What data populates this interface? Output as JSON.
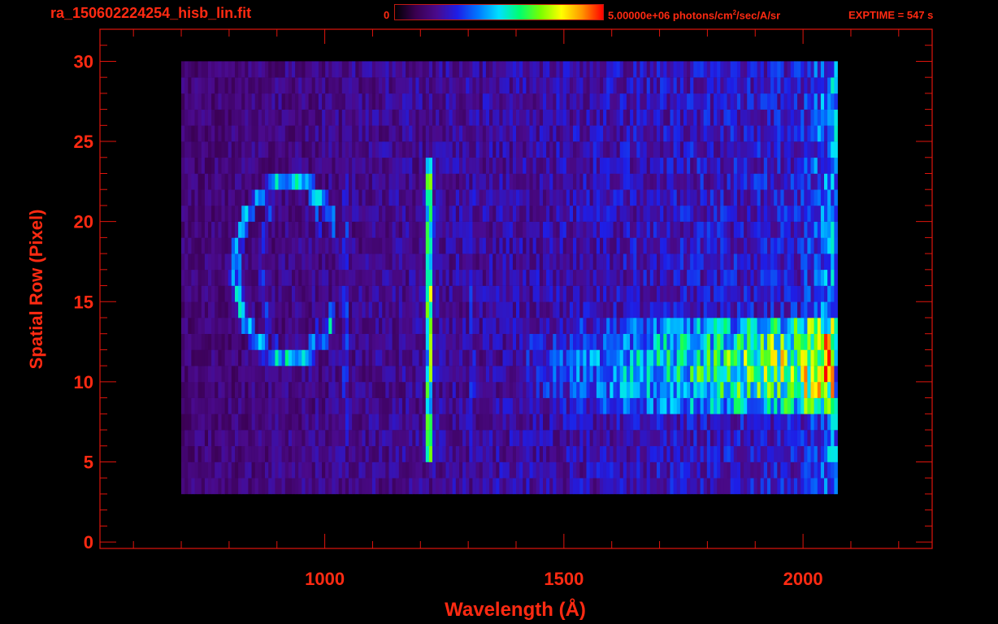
{
  "header": {
    "filename": "ra_150602224254_hisb_lin.fit",
    "colorbar_min": "0",
    "colorbar_max_prefix": "5.00000e+06 photons/cm",
    "colorbar_max_sup": "2",
    "colorbar_max_suffix": "/sec/A/sr",
    "exptime": "EXPTIME = 547 s"
  },
  "colors": {
    "axis": "#e0140c",
    "text": "#ff2a12",
    "background": "#000000",
    "colormap": [
      "#000000",
      "#3a0050",
      "#4a0a8c",
      "#1e1ee6",
      "#0078ff",
      "#00e0ff",
      "#00ff6e",
      "#7aff00",
      "#ffff00",
      "#ff9400",
      "#ff0000"
    ]
  },
  "chart_data": {
    "type": "heatmap",
    "title": "",
    "xlabel": "Wavelength (Å)",
    "ylabel": "Spatial Row (Pixel)",
    "xlim": [
      530,
      2270
    ],
    "ylim": [
      -0.4,
      32
    ],
    "x_ticks": [
      1000,
      1500,
      2000
    ],
    "y_ticks": [
      0,
      5,
      10,
      15,
      20,
      25,
      30
    ],
    "colorbar": {
      "min": 0,
      "max": 5000000,
      "units": "photons/cm^2/sec/A/sr"
    },
    "exposure_time_s": 547,
    "data_extent": {
      "x": [
        700,
        2070
      ],
      "rows": [
        3,
        30
      ]
    },
    "features": [
      {
        "label": "arc",
        "center_x": 920,
        "center_row": 17,
        "radius_x": 110,
        "radius_row": 5.6,
        "level": 0.45
      },
      {
        "label": "inner arc",
        "center_x": 930,
        "center_row": 17,
        "radius_x": 65,
        "radius_row": 5.6,
        "level": 0.3
      },
      {
        "label": "Lyman-alpha line",
        "x": 1215,
        "rows": [
          5,
          24
        ],
        "level": 0.65
      },
      {
        "label": "line",
        "x": 1040,
        "rows": [
          6,
          23
        ],
        "level": 0.3
      },
      {
        "label": "line",
        "x": 1305,
        "rows": [
          6,
          22
        ],
        "level": 0.28
      },
      {
        "label": "continuum band",
        "x": [
          1380,
          2060
        ],
        "rows": [
          8.5,
          13.5
        ],
        "peak_row": 11,
        "level_start": 0.25,
        "level_end": 0.75
      }
    ]
  }
}
